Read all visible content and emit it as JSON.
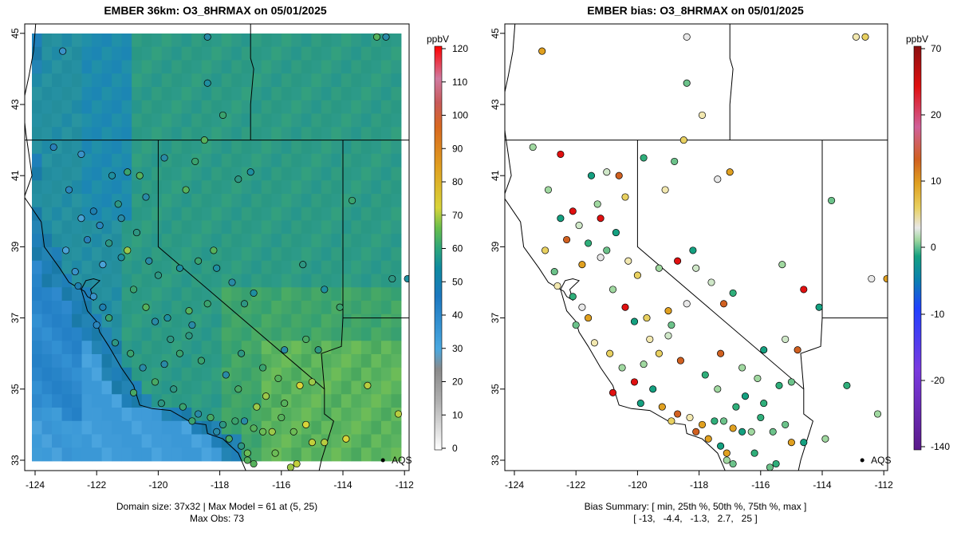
{
  "panels": [
    {
      "title": "EMBER 36km: O3_8HRMAX on 05/01/2025",
      "colorbar_unit": "ppbV",
      "colorbar_ticks": [
        "120",
        "110",
        "100",
        "90",
        "80",
        "70",
        "60",
        "50",
        "40",
        "30",
        "20",
        "10",
        "0"
      ],
      "caption_lines": [
        "Domain size: 37x32 | Max Model = 61 at (5, 25)",
        "Max Obs: 73"
      ]
    },
    {
      "title": "EMBER bias: O3_8HRMAX on 05/01/2025",
      "colorbar_unit": "ppbV",
      "colorbar_ticks": [
        "70",
        "20",
        "10",
        "0",
        "-10",
        "-20",
        "-140"
      ],
      "caption_lines": [
        "Bias Summary: [ min, 25th %, 50th %, 75th %, max ]",
        "[ -13,   -4.4,   -1.3,   2.7,   25 ]"
      ]
    }
  ],
  "axes": {
    "x_ticks": [
      "-124",
      "-122",
      "-120",
      "-118",
      "-116",
      "-114",
      "-112"
    ],
    "y_ticks": [
      "45",
      "43",
      "41",
      "39",
      "37",
      "35",
      "33"
    ],
    "x_range": [
      -124.3,
      -111.7
    ],
    "y_range": [
      32.6,
      45.1
    ]
  },
  "marker": {
    "label": "AQS",
    "lon": -112.7,
    "lat": 33.0
  },
  "colors": {
    "ocean_model": "#2f8fd0",
    "land_model": "#2e9e8a",
    "desert_model": "#58b45c",
    "boundary": "#000000"
  }
}
